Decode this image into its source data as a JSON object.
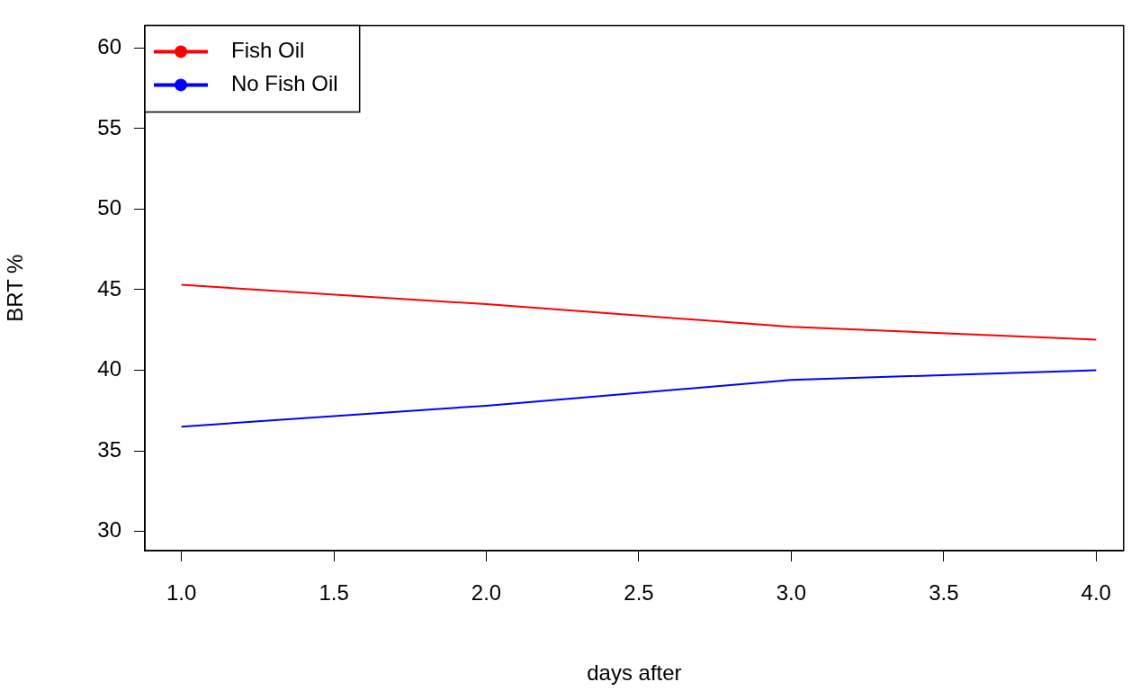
{
  "chart_data": {
    "type": "line",
    "xlabel": "days after",
    "ylabel": "BRT %",
    "x": [
      1,
      2,
      3,
      4
    ],
    "series": [
      {
        "name": "Fish Oil",
        "color": "#ff0000",
        "values": [
          45.3,
          44.1,
          42.7,
          41.9
        ]
      },
      {
        "name": "No Fish Oil",
        "color": "#0000ff",
        "values": [
          36.5,
          37.8,
          39.4,
          40.0
        ]
      }
    ],
    "xlim": [
      0.88,
      4.09
    ],
    "xticks": [
      {
        "value": 1,
        "label": "1.0"
      },
      {
        "value": 1.5,
        "label": "1.5"
      },
      {
        "value": 2,
        "label": "2.0"
      },
      {
        "value": 2.5,
        "label": "2.5"
      },
      {
        "value": 3,
        "label": "3.0"
      },
      {
        "value": 3.5,
        "label": "3.5"
      },
      {
        "value": 4,
        "label": "4.0"
      }
    ],
    "ylim": [
      28.8,
      61.4
    ],
    "yticks": [
      30,
      35,
      40,
      45,
      50,
      55,
      60
    ],
    "grid": false,
    "legend": "top left",
    "marker": "none",
    "line_style": "solid"
  }
}
